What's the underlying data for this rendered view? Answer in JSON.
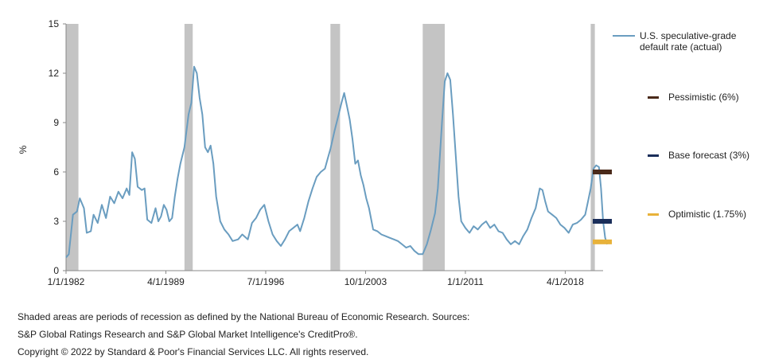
{
  "chart_data": {
    "type": "line",
    "title": "",
    "ylabel": "%",
    "xlabel": "",
    "ylim": [
      0,
      15
    ],
    "xlim": [
      1982.0,
      2021.0
    ],
    "y_ticks": [
      "0",
      "3",
      "6",
      "9",
      "12",
      "15"
    ],
    "x_ticks": [
      {
        "label": "1/1/1982",
        "x": 1982.0
      },
      {
        "label": "4/1/1989",
        "x": 1989.25
      },
      {
        "label": "7/1/1996",
        "x": 1996.5
      },
      {
        "label": "10/1/2003",
        "x": 2003.75
      },
      {
        "label": "1/1/2011",
        "x": 2011.0
      },
      {
        "label": "4/1/2018",
        "x": 2018.25
      }
    ],
    "recessions": [
      [
        1982.0,
        1982.9
      ],
      [
        1990.6,
        1991.2
      ],
      [
        2001.2,
        2001.9
      ],
      [
        2007.9,
        2009.5
      ],
      [
        2020.1,
        2020.4
      ]
    ],
    "series": [
      {
        "name": "U.S. speculative-grade default rate (actual)",
        "color": "#6a9dc0",
        "points": [
          [
            1982.0,
            0.8
          ],
          [
            1982.2,
            1.0
          ],
          [
            1982.5,
            3.4
          ],
          [
            1982.8,
            3.6
          ],
          [
            1983.0,
            4.4
          ],
          [
            1983.3,
            3.8
          ],
          [
            1983.5,
            2.3
          ],
          [
            1983.8,
            2.4
          ],
          [
            1984.0,
            3.4
          ],
          [
            1984.3,
            2.9
          ],
          [
            1984.6,
            4.0
          ],
          [
            1984.9,
            3.2
          ],
          [
            1985.2,
            4.5
          ],
          [
            1985.5,
            4.1
          ],
          [
            1985.8,
            4.8
          ],
          [
            1986.1,
            4.4
          ],
          [
            1986.4,
            5.0
          ],
          [
            1986.6,
            4.6
          ],
          [
            1986.8,
            7.2
          ],
          [
            1987.0,
            6.8
          ],
          [
            1987.2,
            5.1
          ],
          [
            1987.5,
            4.9
          ],
          [
            1987.7,
            5.0
          ],
          [
            1987.9,
            3.1
          ],
          [
            1988.2,
            2.9
          ],
          [
            1988.5,
            3.8
          ],
          [
            1988.7,
            3.0
          ],
          [
            1988.9,
            3.3
          ],
          [
            1989.1,
            4.0
          ],
          [
            1989.3,
            3.7
          ],
          [
            1989.5,
            3.0
          ],
          [
            1989.7,
            3.2
          ],
          [
            1989.9,
            4.5
          ],
          [
            1990.1,
            5.6
          ],
          [
            1990.3,
            6.5
          ],
          [
            1990.6,
            7.5
          ],
          [
            1990.9,
            9.5
          ],
          [
            1991.1,
            10.2
          ],
          [
            1991.3,
            12.4
          ],
          [
            1991.5,
            12.0
          ],
          [
            1991.7,
            10.5
          ],
          [
            1991.9,
            9.5
          ],
          [
            1992.1,
            7.5
          ],
          [
            1992.3,
            7.2
          ],
          [
            1992.5,
            7.6
          ],
          [
            1992.7,
            6.5
          ],
          [
            1992.9,
            4.5
          ],
          [
            1993.2,
            3.0
          ],
          [
            1993.5,
            2.5
          ],
          [
            1993.8,
            2.2
          ],
          [
            1994.1,
            1.8
          ],
          [
            1994.5,
            1.9
          ],
          [
            1994.8,
            2.2
          ],
          [
            1995.2,
            1.9
          ],
          [
            1995.5,
            2.9
          ],
          [
            1995.8,
            3.2
          ],
          [
            1996.1,
            3.7
          ],
          [
            1996.4,
            4.0
          ],
          [
            1996.7,
            3.0
          ],
          [
            1997.0,
            2.2
          ],
          [
            1997.3,
            1.8
          ],
          [
            1997.6,
            1.5
          ],
          [
            1997.9,
            1.9
          ],
          [
            1998.2,
            2.4
          ],
          [
            1998.5,
            2.6
          ],
          [
            1998.8,
            2.8
          ],
          [
            1999.0,
            2.4
          ],
          [
            1999.3,
            3.2
          ],
          [
            1999.6,
            4.2
          ],
          [
            1999.9,
            5.0
          ],
          [
            2000.2,
            5.7
          ],
          [
            2000.5,
            6.0
          ],
          [
            2000.8,
            6.2
          ],
          [
            2001.0,
            6.8
          ],
          [
            2001.2,
            7.4
          ],
          [
            2001.5,
            8.5
          ],
          [
            2001.8,
            9.5
          ],
          [
            2002.0,
            10.2
          ],
          [
            2002.2,
            10.8
          ],
          [
            2002.4,
            10.0
          ],
          [
            2002.6,
            9.2
          ],
          [
            2002.8,
            8.0
          ],
          [
            2003.0,
            6.5
          ],
          [
            2003.2,
            6.7
          ],
          [
            2003.4,
            5.8
          ],
          [
            2003.6,
            5.2
          ],
          [
            2003.8,
            4.4
          ],
          [
            2004.0,
            3.8
          ],
          [
            2004.3,
            2.5
          ],
          [
            2004.6,
            2.4
          ],
          [
            2004.9,
            2.2
          ],
          [
            2005.2,
            2.1
          ],
          [
            2005.5,
            2.0
          ],
          [
            2005.8,
            1.9
          ],
          [
            2006.1,
            1.8
          ],
          [
            2006.4,
            1.6
          ],
          [
            2006.7,
            1.4
          ],
          [
            2007.0,
            1.5
          ],
          [
            2007.3,
            1.2
          ],
          [
            2007.6,
            1.0
          ],
          [
            2007.9,
            1.0
          ],
          [
            2008.2,
            1.6
          ],
          [
            2008.5,
            2.5
          ],
          [
            2008.8,
            3.5
          ],
          [
            2009.0,
            5.0
          ],
          [
            2009.3,
            9.0
          ],
          [
            2009.5,
            11.5
          ],
          [
            2009.7,
            12.0
          ],
          [
            2009.9,
            11.6
          ],
          [
            2010.1,
            9.5
          ],
          [
            2010.3,
            7.0
          ],
          [
            2010.5,
            4.5
          ],
          [
            2010.7,
            3.0
          ],
          [
            2011.0,
            2.6
          ],
          [
            2011.3,
            2.3
          ],
          [
            2011.6,
            2.7
          ],
          [
            2011.9,
            2.5
          ],
          [
            2012.2,
            2.8
          ],
          [
            2012.5,
            3.0
          ],
          [
            2012.8,
            2.6
          ],
          [
            2013.1,
            2.8
          ],
          [
            2013.4,
            2.4
          ],
          [
            2013.7,
            2.3
          ],
          [
            2014.0,
            1.9
          ],
          [
            2014.3,
            1.6
          ],
          [
            2014.6,
            1.8
          ],
          [
            2014.9,
            1.6
          ],
          [
            2015.2,
            2.1
          ],
          [
            2015.5,
            2.5
          ],
          [
            2015.8,
            3.2
          ],
          [
            2016.1,
            3.8
          ],
          [
            2016.4,
            5.0
          ],
          [
            2016.6,
            4.9
          ],
          [
            2016.8,
            4.2
          ],
          [
            2017.0,
            3.6
          ],
          [
            2017.3,
            3.4
          ],
          [
            2017.6,
            3.2
          ],
          [
            2017.9,
            2.8
          ],
          [
            2018.2,
            2.6
          ],
          [
            2018.5,
            2.3
          ],
          [
            2018.8,
            2.8
          ],
          [
            2019.1,
            2.9
          ],
          [
            2019.4,
            3.1
          ],
          [
            2019.7,
            3.4
          ],
          [
            2019.9,
            4.2
          ],
          [
            2020.1,
            5.0
          ],
          [
            2020.3,
            6.2
          ],
          [
            2020.5,
            6.4
          ],
          [
            2020.7,
            6.3
          ],
          [
            2020.85,
            5.0
          ],
          [
            2021.0,
            3.0
          ],
          [
            2021.15,
            2.0
          ],
          [
            2021.3,
            1.6
          ]
        ]
      }
    ],
    "forecasts": [
      {
        "name": "Pessimistic (6%)",
        "value": 6.0,
        "color": "#4a2a1a"
      },
      {
        "name": "Base forecast (3%)",
        "value": 3.0,
        "color": "#1a2e5a"
      },
      {
        "name": "Optimistic (1.75%)",
        "value": 1.75,
        "color": "#e8b23a"
      }
    ],
    "legend": "right"
  },
  "footnotes": [
    "Shaded areas are periods of recession as defined by the National Bureau of Economic Research. Sources:",
    "S&P Global Ratings Research and S&P Global Market Intelligence's CreditPro®.",
    "Copyright © 2022 by Standard & Poor's Financial Services LLC. All rights reserved."
  ]
}
